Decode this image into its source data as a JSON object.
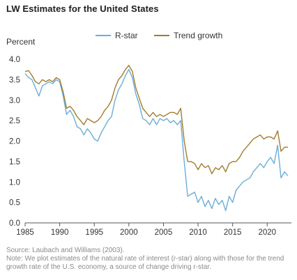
{
  "title": "LW Estimates for the United States",
  "source": "Source: Laubach and Williams (2003).",
  "note": "Note: We plot estimates of the natural rate of interest (r-star) along with those for the trend growth rate of the U.S. economy, a source of change driving r-star.",
  "colors": {
    "rstar": "#6aaed6",
    "trend": "#a07c2c",
    "axis": "#555555",
    "grid": "#e6e6e6"
  },
  "chart_data": {
    "type": "line",
    "title": "LW Estimates for the United States",
    "ylabel": "Percent",
    "xlabel": "",
    "xlim": [
      1985,
      2023.5
    ],
    "ylim": [
      0,
      4
    ],
    "xticks": [
      1985,
      1990,
      1995,
      2000,
      2005,
      2010,
      2015,
      2020
    ],
    "yticks": [
      0.0,
      0.5,
      1.0,
      1.5,
      2.0,
      2.5,
      3.0,
      3.5,
      4.0
    ],
    "ytick_labels": [
      "0.0",
      "0.5",
      "1.0",
      "1.5",
      "2.0",
      "2.5",
      "3.0",
      "3.5",
      "4.0"
    ],
    "legend_position": "top-center",
    "grid": false,
    "series": [
      {
        "name": "R-star",
        "x": [
          1985.0,
          1985.5,
          1986.0,
          1986.5,
          1987.0,
          1987.5,
          1988.0,
          1988.5,
          1989.0,
          1989.5,
          1990.0,
          1990.5,
          1991.0,
          1991.5,
          1992.0,
          1992.5,
          1993.0,
          1993.5,
          1994.0,
          1994.5,
          1995.0,
          1995.5,
          1996.0,
          1996.5,
          1997.0,
          1997.5,
          1998.0,
          1998.5,
          1999.0,
          1999.5,
          2000.0,
          2000.5,
          2001.0,
          2001.5,
          2002.0,
          2002.5,
          2003.0,
          2003.5,
          2004.0,
          2004.5,
          2005.0,
          2005.5,
          2006.0,
          2006.5,
          2007.0,
          2007.5,
          2008.0,
          2008.5,
          2009.0,
          2009.5,
          2010.0,
          2010.5,
          2011.0,
          2011.5,
          2012.0,
          2012.5,
          2013.0,
          2013.5,
          2014.0,
          2014.5,
          2015.0,
          2015.5,
          2016.0,
          2016.5,
          2017.0,
          2017.5,
          2018.0,
          2018.5,
          2019.0,
          2019.5,
          2020.0,
          2020.5,
          2021.0,
          2021.5,
          2022.0,
          2022.5,
          2023.0
        ],
        "values": [
          3.65,
          3.55,
          3.5,
          3.3,
          3.1,
          3.35,
          3.4,
          3.45,
          3.4,
          3.5,
          3.45,
          3.1,
          2.65,
          2.75,
          2.6,
          2.35,
          2.3,
          2.15,
          2.3,
          2.2,
          2.05,
          2.0,
          2.2,
          2.35,
          2.5,
          2.6,
          3.0,
          3.25,
          3.4,
          3.6,
          3.75,
          3.55,
          3.15,
          2.9,
          2.55,
          2.5,
          2.4,
          2.55,
          2.4,
          2.55,
          2.5,
          2.55,
          2.45,
          2.5,
          2.4,
          2.5,
          1.5,
          0.65,
          0.7,
          0.75,
          0.5,
          0.65,
          0.4,
          0.55,
          0.35,
          0.6,
          0.45,
          0.55,
          0.3,
          0.65,
          0.5,
          0.8,
          0.9,
          1.0,
          1.05,
          1.1,
          1.25,
          1.35,
          1.45,
          1.35,
          1.5,
          1.6,
          1.45,
          1.9,
          1.1,
          1.25,
          1.15
        ]
      },
      {
        "name": "Trend growth",
        "x": [
          1985.0,
          1985.5,
          1986.0,
          1986.5,
          1987.0,
          1987.5,
          1988.0,
          1988.5,
          1989.0,
          1989.5,
          1990.0,
          1990.5,
          1991.0,
          1991.5,
          1992.0,
          1992.5,
          1993.0,
          1993.5,
          1994.0,
          1994.5,
          1995.0,
          1995.5,
          1996.0,
          1996.5,
          1997.0,
          1997.5,
          1998.0,
          1998.5,
          1999.0,
          1999.5,
          2000.0,
          2000.5,
          2001.0,
          2001.5,
          2002.0,
          2002.5,
          2003.0,
          2003.5,
          2004.0,
          2004.5,
          2005.0,
          2005.5,
          2006.0,
          2006.5,
          2007.0,
          2007.5,
          2008.0,
          2008.5,
          2009.0,
          2009.5,
          2010.0,
          2010.5,
          2011.0,
          2011.5,
          2012.0,
          2012.5,
          2013.0,
          2013.5,
          2014.0,
          2014.5,
          2015.0,
          2015.5,
          2016.0,
          2016.5,
          2017.0,
          2017.5,
          2018.0,
          2018.5,
          2019.0,
          2019.5,
          2020.0,
          2020.5,
          2021.0,
          2021.5,
          2022.0,
          2022.5,
          2023.0
        ],
        "values": [
          3.7,
          3.72,
          3.6,
          3.45,
          3.4,
          3.5,
          3.45,
          3.5,
          3.45,
          3.55,
          3.5,
          3.2,
          2.8,
          2.85,
          2.75,
          2.6,
          2.5,
          2.4,
          2.55,
          2.5,
          2.45,
          2.5,
          2.6,
          2.75,
          2.85,
          3.0,
          3.3,
          3.5,
          3.6,
          3.75,
          3.85,
          3.7,
          3.3,
          3.05,
          2.8,
          2.7,
          2.6,
          2.7,
          2.6,
          2.65,
          2.6,
          2.65,
          2.7,
          2.7,
          2.65,
          2.8,
          2.0,
          1.5,
          1.5,
          1.45,
          1.3,
          1.45,
          1.35,
          1.4,
          1.2,
          1.35,
          1.3,
          1.4,
          1.25,
          1.45,
          1.5,
          1.5,
          1.6,
          1.75,
          1.85,
          1.95,
          2.05,
          2.1,
          2.15,
          2.05,
          2.1,
          2.1,
          2.05,
          2.25,
          1.75,
          1.85,
          1.85
        ]
      }
    ]
  }
}
